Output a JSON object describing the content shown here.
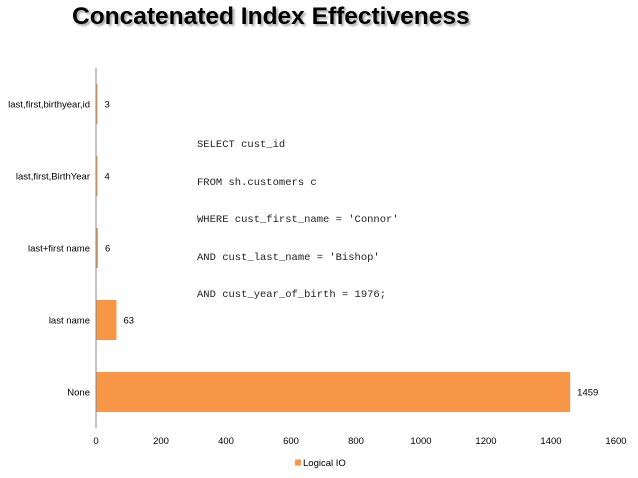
{
  "title": "Concatenated Index Effectiveness",
  "sql_lines": [
    "SELECT cust_id",
    "FROM sh.customers c",
    "WHERE cust_first_name = 'Connor'",
    "AND cust_last_name = 'Bishop'",
    "AND cust_year_of_birth = 1976;"
  ],
  "chart_data": {
    "type": "bar",
    "orientation": "horizontal",
    "title": "Concatenated Index Effectiveness",
    "categories": [
      "last,first,birthyear,id",
      "last,first,BirthYear",
      "last+first name",
      "last name",
      "None"
    ],
    "series": [
      {
        "name": "Logical IO",
        "values": [
          3,
          4,
          6,
          63,
          1459
        ]
      }
    ],
    "xlim": [
      0,
      1600
    ],
    "xticks": [
      0,
      200,
      400,
      600,
      800,
      1000,
      1200,
      1400,
      1600
    ],
    "grid": false,
    "legend": "bottom",
    "bar_color": "#f79646"
  }
}
